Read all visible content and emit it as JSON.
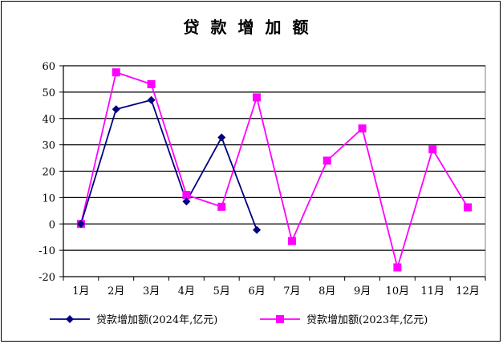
{
  "chart_data": {
    "type": "line",
    "title": "贷款增加额",
    "xlabel": "",
    "ylabel": "",
    "categories": [
      "1月",
      "2月",
      "3月",
      "4月",
      "5月",
      "6月",
      "7月",
      "8月",
      "9月",
      "10月",
      "11月",
      "12月"
    ],
    "ylim": [
      -20,
      60
    ],
    "yticks": [
      -20,
      -10,
      0,
      10,
      20,
      30,
      40,
      50,
      60
    ],
    "grid": true,
    "legend_position": "bottom",
    "series": [
      {
        "name": "贷款增加额(2024年,亿元)",
        "color": "#000080",
        "marker": "diamond",
        "values": [
          0,
          43.5,
          47,
          8.5,
          32.8,
          -2.3,
          null,
          null,
          null,
          null,
          null,
          null
        ]
      },
      {
        "name": "贷款增加额(2023年,亿元)",
        "color": "#FF00FF",
        "marker": "square",
        "values": [
          0,
          57.5,
          53,
          11,
          6.5,
          48,
          -6.5,
          24,
          36.2,
          -16.5,
          28.3,
          6.3
        ]
      }
    ]
  }
}
